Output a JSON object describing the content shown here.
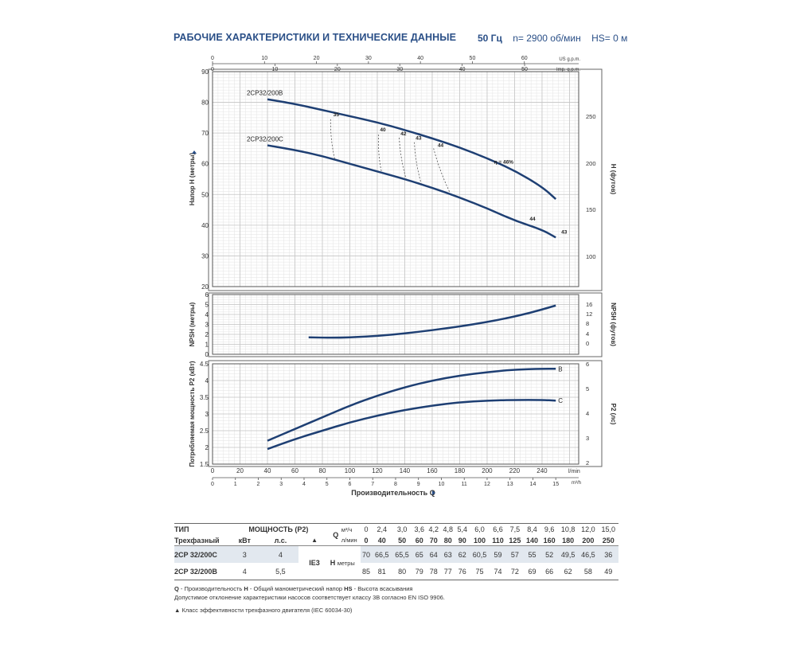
{
  "header": {
    "title": "РАБОЧИЕ ХАРАКТЕРИСТИКИ И ТЕХНИЧЕСКИЕ ДАННЫЕ",
    "frequency": "50 Гц",
    "speed": "n= 2900 об/мин",
    "suction": "HS= 0 м"
  },
  "colors": {
    "curve": "#1e3f73",
    "grid": "#c5c5c5",
    "title": "#2a4f87",
    "row_highlight": "#e2e8ef"
  },
  "chart_data": [
    {
      "type": "line",
      "ylabel": "Напор H (метры)",
      "y2label": "H (футов)",
      "ylim": [
        20,
        90
      ],
      "yticks": [
        20,
        30,
        40,
        50,
        60,
        70,
        80,
        90
      ],
      "y2ticks": [
        100,
        150,
        200,
        250
      ],
      "series": [
        {
          "name": "2CP32/200B",
          "x": [
            40,
            60,
            80,
            100,
            120,
            140,
            160,
            180,
            200,
            220,
            240,
            250
          ],
          "y": [
            81,
            79.5,
            77.5,
            75.5,
            73.5,
            71,
            68.3,
            65.3,
            61.8,
            57.8,
            52.5,
            48.5
          ]
        },
        {
          "name": "2CP32/200C",
          "x": [
            40,
            60,
            80,
            100,
            120,
            140,
            160,
            180,
            200,
            220,
            240,
            250
          ],
          "y": [
            66,
            64.5,
            62.5,
            60,
            57.5,
            55,
            52.2,
            49,
            45.5,
            41.5,
            38.5,
            36
          ]
        }
      ],
      "efficiency_labels": [
        {
          "text": "35",
          "x": 88,
          "y": 75.5
        },
        {
          "text": "40",
          "x": 122,
          "y": 70.5
        },
        {
          "text": "42",
          "x": 137,
          "y": 69.3
        },
        {
          "text": "43",
          "x": 148,
          "y": 67.8
        },
        {
          "text": "44",
          "x": 164,
          "y": 65.5
        },
        {
          "text": "η = 46%",
          "x": 205,
          "y": 60.0
        },
        {
          "text": "44",
          "x": 231,
          "y": 41.5
        },
        {
          "text": "43",
          "x": 254,
          "y": 37.3
        }
      ],
      "efficiency_lines": [
        {
          "x1": 86,
          "y1": 74.5,
          "x2": 89,
          "y2": 61.5
        },
        {
          "x1": 121,
          "y1": 69.5,
          "x2": 123,
          "y2": 57.5
        },
        {
          "x1": 136,
          "y1": 68.5,
          "x2": 141,
          "y2": 55.0
        },
        {
          "x1": 147,
          "y1": 67.0,
          "x2": 152,
          "y2": 53.5
        },
        {
          "x1": 161,
          "y1": 65.0,
          "x2": 173,
          "y2": 50.5
        }
      ]
    },
    {
      "type": "line",
      "ylabel": "NPSH (метры)",
      "y2label": "NPSH (футов)",
      "ylim": [
        0,
        6
      ],
      "yticks": [
        0,
        1,
        2,
        3,
        4,
        5,
        6
      ],
      "y2ticks": [
        0,
        4,
        8,
        12,
        16
      ],
      "series": [
        {
          "name": "",
          "x": [
            70,
            90,
            110,
            130,
            150,
            170,
            190,
            210,
            230,
            250
          ],
          "y": [
            1.7,
            1.65,
            1.75,
            1.95,
            2.25,
            2.6,
            3.0,
            3.5,
            4.1,
            4.9
          ]
        }
      ]
    },
    {
      "type": "line",
      "ylabel": "Потребляемая мощность P2 (кВт)",
      "y2label": "P2 (лс)",
      "xlabel": "Производительность Q",
      "ylim": [
        1.5,
        4.5
      ],
      "yticks": [
        1.5,
        2.0,
        2.5,
        3.0,
        3.5,
        4.0,
        4.5
      ],
      "y2ticks": [
        2,
        3,
        4,
        5,
        6
      ],
      "x_lmin_ticks": [
        0,
        20,
        40,
        60,
        80,
        100,
        120,
        140,
        160,
        180,
        200,
        220,
        240
      ],
      "x_lmin_unit": "l/min",
      "x_m3h_ticks": [
        0,
        1,
        2,
        3,
        4,
        5,
        6,
        7,
        8,
        9,
        10,
        11,
        12,
        13,
        14,
        15
      ],
      "x_m3h_unit": "m³/h",
      "x_us_ticks": [
        0,
        10,
        20,
        30,
        40,
        50,
        60
      ],
      "x_us_unit": "US g.p.m.",
      "x_imp_ticks": [
        0,
        10,
        20,
        30,
        40,
        50
      ],
      "x_imp_unit": "Imp. g.p.m.",
      "series": [
        {
          "name": "B",
          "x": [
            40,
            60,
            80,
            100,
            120,
            140,
            160,
            180,
            200,
            220,
            240,
            250
          ],
          "y": [
            2.2,
            2.55,
            2.9,
            3.25,
            3.55,
            3.8,
            4.0,
            4.15,
            4.25,
            4.33,
            4.35,
            4.35
          ]
        },
        {
          "name": "C",
          "x": [
            40,
            60,
            80,
            100,
            120,
            140,
            160,
            180,
            200,
            220,
            240,
            250
          ],
          "y": [
            1.95,
            2.25,
            2.5,
            2.75,
            2.95,
            3.12,
            3.25,
            3.35,
            3.4,
            3.42,
            3.42,
            3.4
          ]
        }
      ]
    }
  ],
  "table": {
    "h_type": "ТИП",
    "h_power": "МОЩНОСТЬ (P2)",
    "h_phase": "Трехфазный",
    "h_kw": "кВт",
    "h_hp": "л.с.",
    "h_triangle": "▲",
    "h_q": "Q",
    "h_m3h": "м³/ч",
    "h_lmin": "л/мин",
    "h_ie": "IE3",
    "h_h": "H",
    "h_meters": "метры",
    "q_m3h": [
      "0",
      "2,4",
      "3,0",
      "3,6",
      "4,2",
      "4,8",
      "5,4",
      "6,0",
      "6,6",
      "7,5",
      "8,4",
      "9,6",
      "10,8",
      "12,0",
      "15,0"
    ],
    "q_lmin": [
      "0",
      "40",
      "50",
      "60",
      "70",
      "80",
      "90",
      "100",
      "110",
      "125",
      "140",
      "160",
      "180",
      "200",
      "250"
    ],
    "rows": [
      {
        "model": "2CP 32/200C",
        "kw": "3",
        "hp": "4",
        "h": [
          "70",
          "66,5",
          "65,5",
          "65",
          "64",
          "63",
          "62",
          "60,5",
          "59",
          "57",
          "55",
          "52",
          "49,5",
          "46,5",
          "36"
        ]
      },
      {
        "model": "2CP 32/200B",
        "kw": "4",
        "hp": "5,5",
        "h": [
          "85",
          "81",
          "80",
          "79",
          "78",
          "77",
          "76",
          "75",
          "74",
          "72",
          "69",
          "66",
          "62",
          "58",
          "49"
        ]
      }
    ]
  },
  "notes": {
    "q_key": "Q",
    "q_text": " - Производительность  ",
    "h_key": "H",
    "h_text": " - Общий манометрический напор  ",
    "hs_key": "HS",
    "hs_text": " - Высота всасывания",
    "tolerance": "Допустимое отклонение характеристики насосов соответствует классу 3B согласно EN ISO 9906.",
    "ie_note": "▲  Класс эффективности трехфазного двигателя (IEC 60034-30)"
  }
}
